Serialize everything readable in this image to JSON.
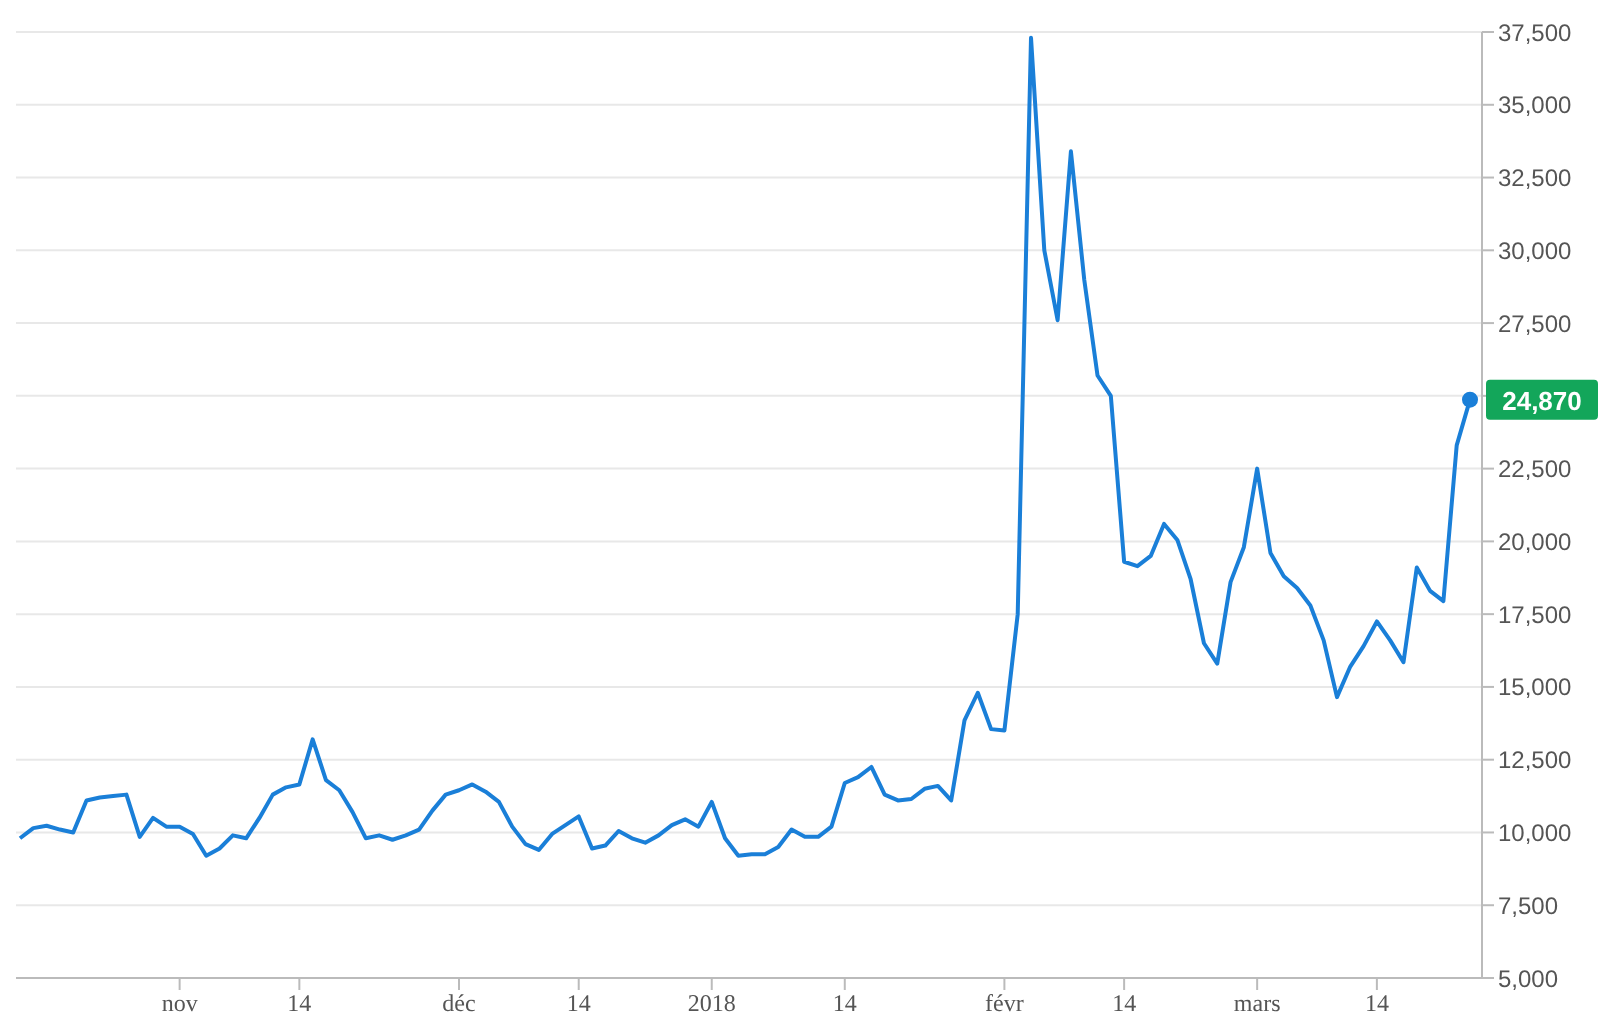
{
  "chart_data": {
    "type": "line",
    "categories": [
      null,
      null,
      null,
      null,
      null,
      null,
      null,
      null,
      null,
      null,
      null,
      null,
      "nov",
      null,
      null,
      null,
      null,
      null,
      null,
      null,
      null,
      "14",
      null,
      null,
      null,
      null,
      null,
      null,
      null,
      null,
      null,
      null,
      null,
      "déc",
      null,
      null,
      null,
      null,
      null,
      null,
      null,
      null,
      "14",
      null,
      null,
      null,
      null,
      null,
      null,
      null,
      null,
      null,
      "2018",
      null,
      null,
      null,
      null,
      null,
      null,
      null,
      null,
      null,
      "14",
      null,
      null,
      null,
      null,
      null,
      null,
      null,
      null,
      null,
      null,
      null,
      "févr",
      null,
      null,
      null,
      null,
      null,
      null,
      null,
      null,
      "14",
      null,
      null,
      null,
      null,
      null,
      null,
      null,
      null,
      null,
      "mars",
      null,
      null,
      null,
      null,
      null,
      null,
      null,
      null,
      "14",
      null,
      null,
      null,
      null,
      null,
      null,
      null
    ],
    "series": [
      {
        "color": "#1a7fd8",
        "values": [
          9800,
          10150,
          10230,
          10100,
          10000,
          11100,
          11200,
          11250,
          11300,
          9850,
          10500,
          10200,
          10200,
          9950,
          9200,
          9450,
          9900,
          9800,
          10500,
          11300,
          11550,
          11650,
          13200,
          11800,
          11450,
          10700,
          9800,
          9900,
          9750,
          9900,
          10100,
          10750,
          11300,
          11450,
          11650,
          11400,
          11050,
          10200,
          9600,
          9400,
          9950,
          10250,
          10550,
          9450,
          9550,
          10050,
          9800,
          9650,
          9900,
          10250,
          10450,
          10200,
          11050,
          9800,
          9200,
          9250,
          9250,
          9500,
          10100,
          9850,
          9850,
          10200,
          11700,
          11900,
          12250,
          11300,
          11100,
          11150,
          11500,
          11600,
          11100,
          13850,
          14800,
          13550,
          13500,
          17500,
          37300,
          30000,
          27600,
          33400,
          29000,
          25700,
          25000,
          19300,
          19150,
          19500,
          20600,
          20050,
          18700,
          16500,
          15800,
          18600,
          19800,
          22500,
          19600,
          18800,
          18400,
          17800,
          16600,
          14650,
          15700,
          16400,
          17250,
          16600,
          15850,
          19100,
          18300,
          17950,
          23300,
          24870
        ]
      }
    ],
    "ylim": [
      5000,
      37500
    ],
    "yticks": [
      {
        "value": 5000,
        "label": "5,000"
      },
      {
        "value": 7500,
        "label": "7,500"
      },
      {
        "value": 10000,
        "label": "10,000"
      },
      {
        "value": 12500,
        "label": "12,500"
      },
      {
        "value": 15000,
        "label": "15,000"
      },
      {
        "value": 17500,
        "label": "17,500"
      },
      {
        "value": 20000,
        "label": "20,000"
      },
      {
        "value": 22500,
        "label": "22,500"
      },
      {
        "value": 25000,
        "label": null
      },
      {
        "value": 27500,
        "label": "27,500"
      },
      {
        "value": 30000,
        "label": "30,000"
      },
      {
        "value": 32500,
        "label": "32,500"
      },
      {
        "value": 35000,
        "label": "35,000"
      },
      {
        "value": 37500,
        "label": "37,500"
      }
    ],
    "grid": "y",
    "marker": "none",
    "line_style": "solid",
    "annotations": [
      "24,870"
    ]
  }
}
